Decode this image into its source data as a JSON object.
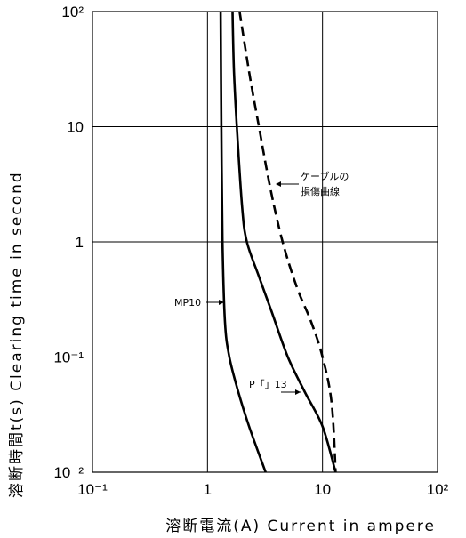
{
  "chart_data": {
    "type": "line",
    "title": "",
    "xlabel": "溶断電流(A)  Current  in  ampere",
    "ylabel": "溶断時間t(s)  Clearing  time  in  second",
    "xscale": "log",
    "yscale": "log",
    "xlim": [
      0.1,
      100
    ],
    "ylim": [
      0.01,
      100
    ],
    "grid": true,
    "x_ticks": [
      "10⁻¹",
      "1",
      "10",
      "10²"
    ],
    "y_ticks": [
      "10⁻²",
      "10⁻¹",
      "1",
      "10",
      "10²"
    ],
    "series": [
      {
        "name": "MP10",
        "style": "solid",
        "points": [
          [
            1.3,
            100
          ],
          [
            1.32,
            10
          ],
          [
            1.35,
            1
          ],
          [
            1.42,
            0.2
          ],
          [
            1.55,
            0.1
          ],
          [
            1.85,
            0.05
          ],
          [
            2.3,
            0.025
          ],
          [
            3.2,
            0.01
          ]
        ]
      },
      {
        "name": "P「」13",
        "style": "solid",
        "points": [
          [
            1.65,
            100
          ],
          [
            1.7,
            30
          ],
          [
            1.8,
            10
          ],
          [
            2.0,
            2
          ],
          [
            2.2,
            1
          ],
          [
            2.8,
            0.5
          ],
          [
            3.6,
            0.25
          ],
          [
            5.0,
            0.1
          ],
          [
            7.0,
            0.05
          ],
          [
            10.0,
            0.025
          ],
          [
            13.0,
            0.01
          ]
        ]
      },
      {
        "name": "ケーブルの損傷曲線",
        "style": "dashed",
        "points": [
          [
            1.9,
            100
          ],
          [
            2.3,
            30
          ],
          [
            2.8,
            10
          ],
          [
            3.5,
            3
          ],
          [
            4.5,
            1
          ],
          [
            6.0,
            0.4
          ],
          [
            8.0,
            0.2
          ],
          [
            10.0,
            0.1
          ],
          [
            12.0,
            0.04
          ],
          [
            13.0,
            0.01
          ]
        ]
      }
    ],
    "annotations": [
      {
        "text": "MP10",
        "series": 0
      },
      {
        "text": "P「」13",
        "series": 1
      },
      {
        "text": "ケーブルの",
        "series": 2
      },
      {
        "text": "損傷曲線",
        "series": 2
      }
    ]
  }
}
